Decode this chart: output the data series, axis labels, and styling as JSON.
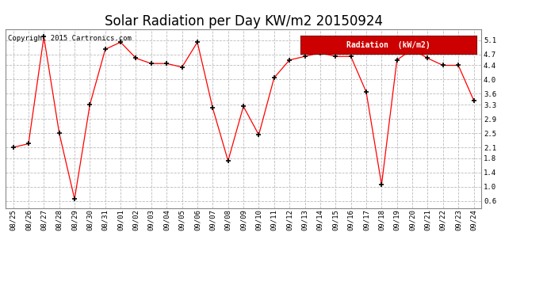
{
  "title": "Solar Radiation per Day KW/m2 20150924",
  "copyright_text": "Copyright 2015 Cartronics.com",
  "legend_label": "Radiation  (kW/m2)",
  "dates": [
    "08/25",
    "08/26",
    "08/27",
    "08/28",
    "08/29",
    "08/30",
    "08/31",
    "09/01",
    "09/02",
    "09/03",
    "09/04",
    "09/05",
    "09/06",
    "09/07",
    "09/08",
    "09/09",
    "09/10",
    "09/11",
    "09/12",
    "09/13",
    "09/14",
    "09/15",
    "09/16",
    "09/17",
    "09/18",
    "09/19",
    "09/20",
    "09/21",
    "09/22",
    "09/23",
    "09/24"
  ],
  "values": [
    2.1,
    2.2,
    5.2,
    2.5,
    0.65,
    3.3,
    4.85,
    5.05,
    4.6,
    4.45,
    4.45,
    4.35,
    5.05,
    3.2,
    1.72,
    3.25,
    2.45,
    4.05,
    4.55,
    4.65,
    4.75,
    4.65,
    4.65,
    3.65,
    1.05,
    4.55,
    4.85,
    4.6,
    4.4,
    4.4,
    3.42
  ],
  "line_color": "red",
  "marker_color": "black",
  "marker": "+",
  "bg_color": "#ffffff",
  "plot_bg_color": "#ffffff",
  "grid_color": "#bbbbbb",
  "ylim": [
    0.4,
    5.4
  ],
  "yticks": [
    0.6,
    1.0,
    1.4,
    1.8,
    2.1,
    2.5,
    2.9,
    3.3,
    3.6,
    4.0,
    4.4,
    4.7,
    5.1
  ],
  "ytick_labels": [
    "0.6",
    "1.0",
    "1.4",
    "1.8",
    "2.1",
    "2.5",
    "2.9",
    "3.3",
    "3.6",
    "4.0",
    "4.4",
    "4.7",
    "5.1"
  ],
  "legend_bg": "#cc0000",
  "legend_text_color": "white",
  "title_fontsize": 12,
  "tick_fontsize": 6.5,
  "copyright_fontsize": 6.5
}
